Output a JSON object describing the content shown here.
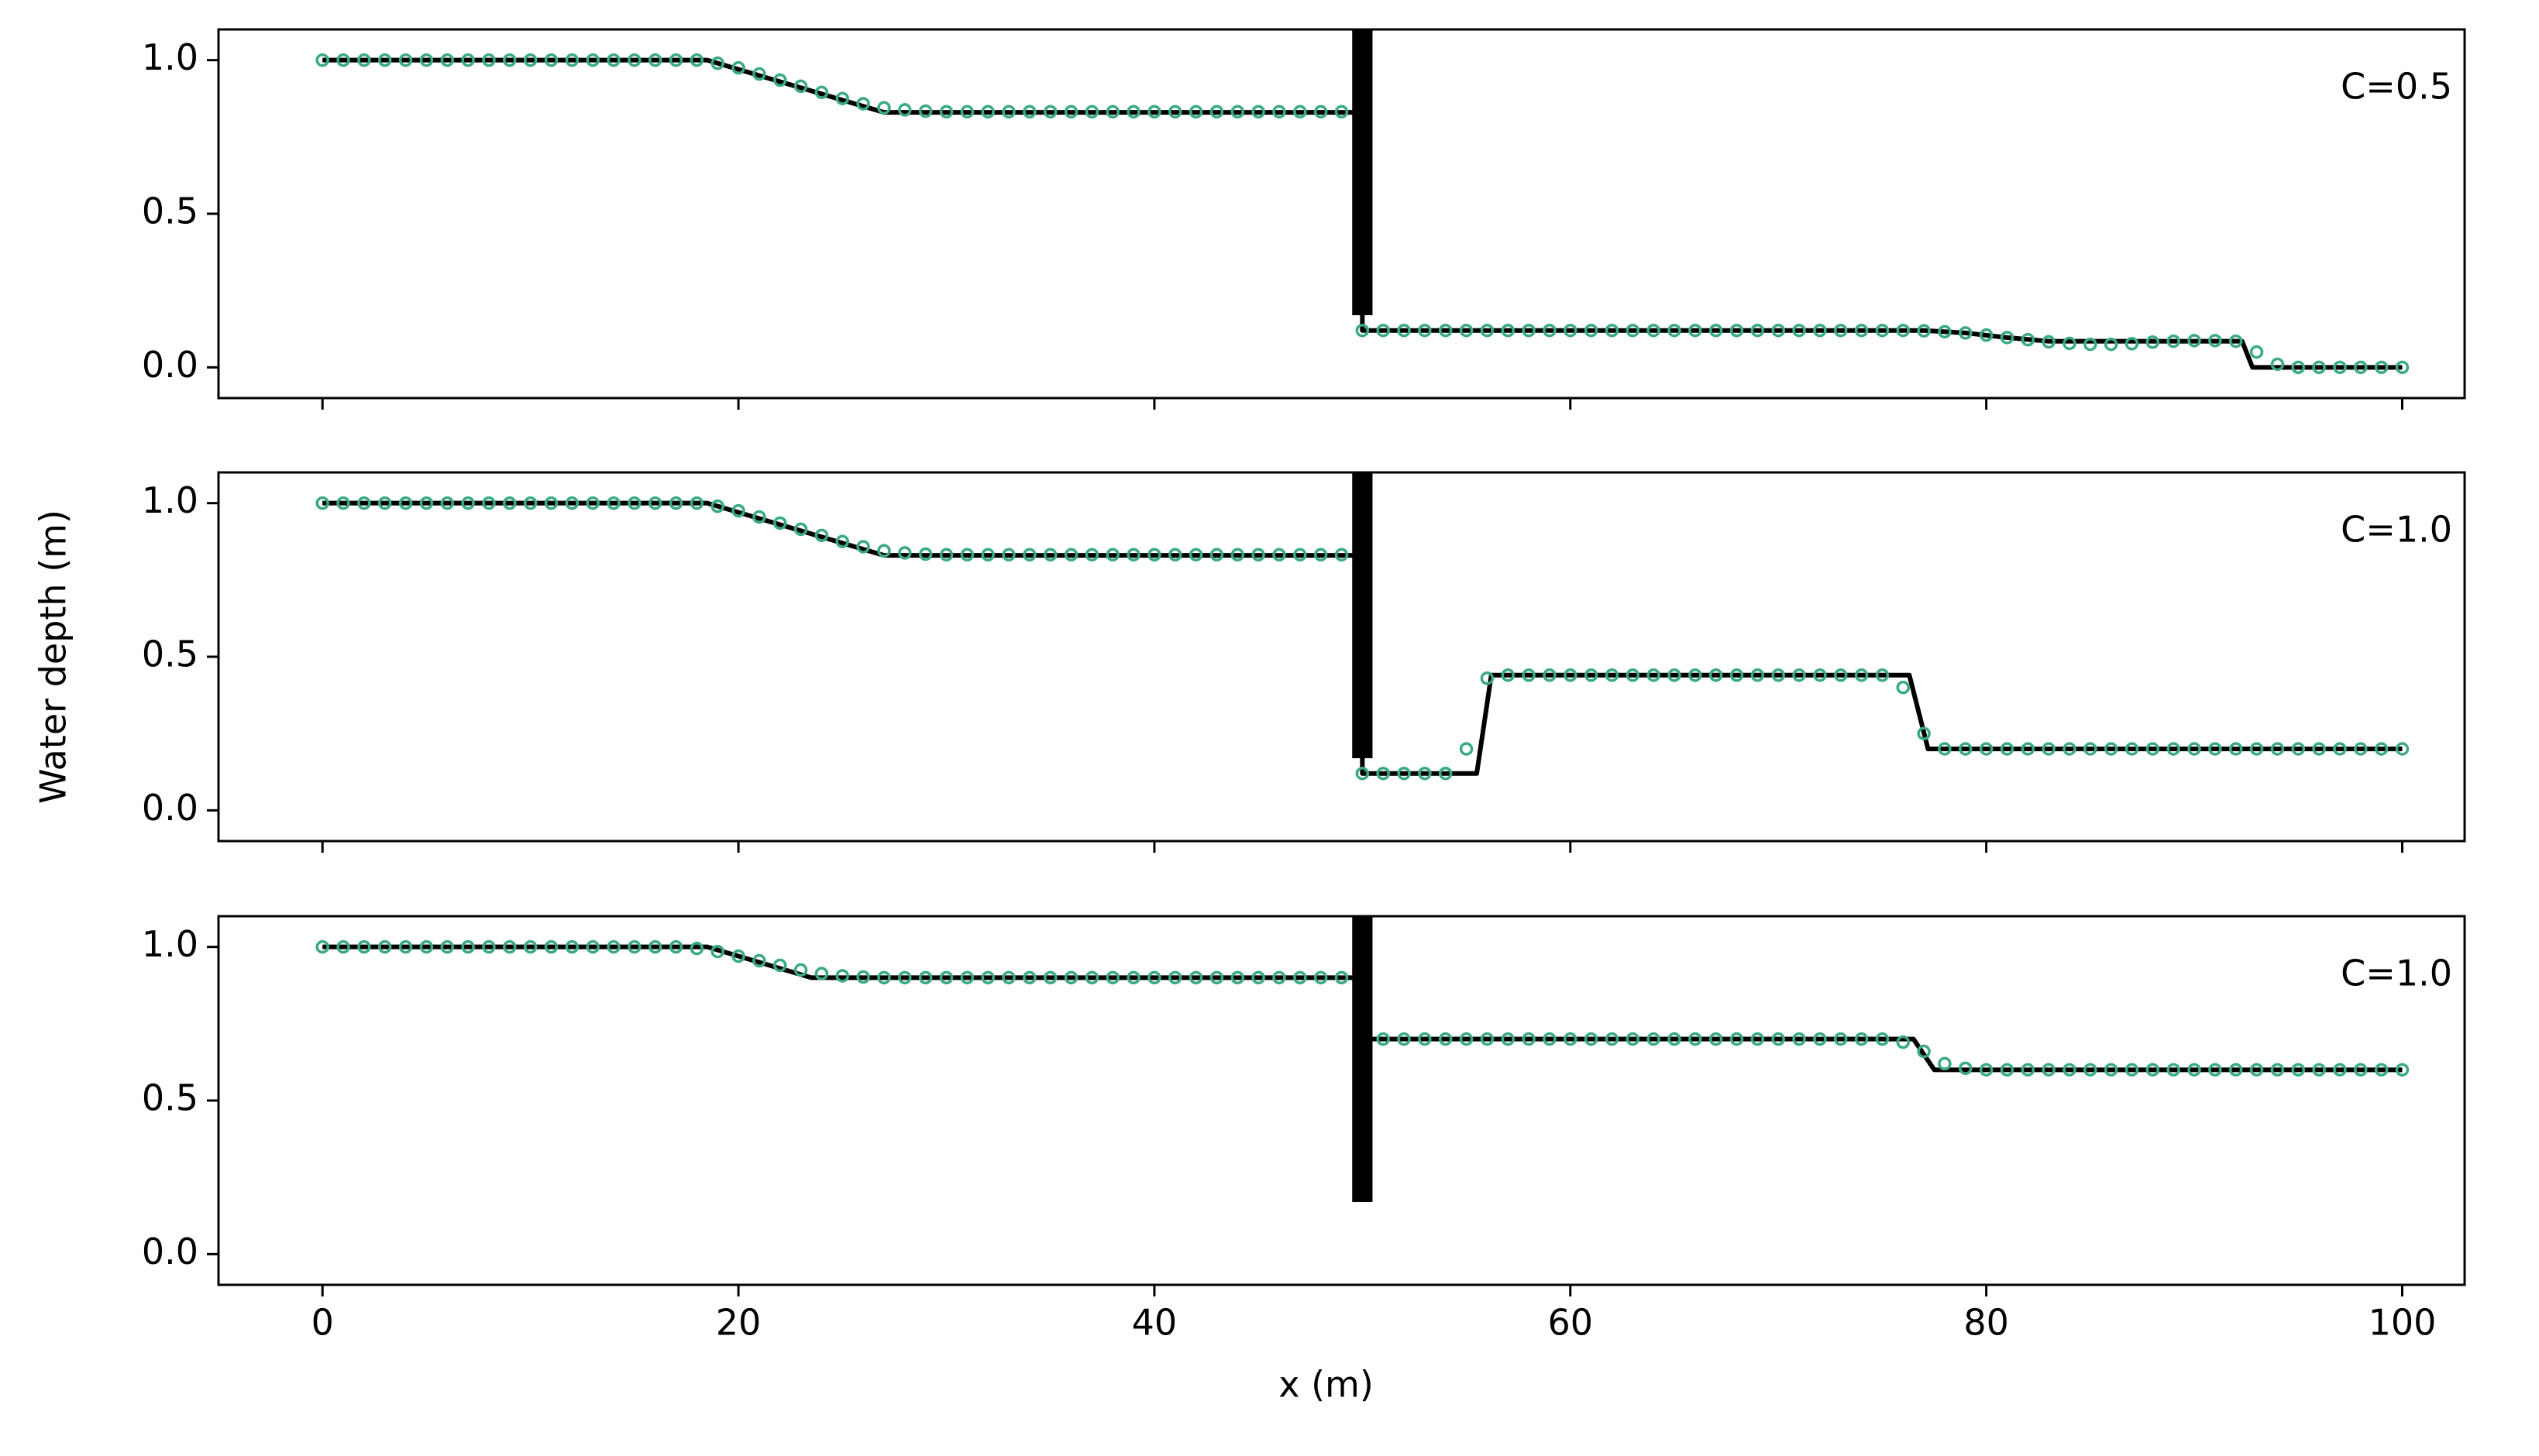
{
  "chart_data": [
    {
      "type": "line",
      "annotation": "C=0.5",
      "xlim": [
        -5,
        103
      ],
      "ylim": [
        -0.1,
        1.1
      ],
      "xticks": [
        0,
        20,
        40,
        60,
        80,
        100
      ],
      "xticklabels": false,
      "yticks": [
        {
          "value": 0,
          "label": "0.0"
        },
        0.5,
        {
          "value": 1,
          "label": "1.0"
        }
      ],
      "wall": {
        "x": 50,
        "bottom": 0.17
      },
      "series": [
        {
          "color": "#000000",
          "marker": "none",
          "x": [
            0,
            18.5,
            27,
            50,
            50,
            77,
            79,
            81,
            83,
            92.3,
            92.8,
            100
          ],
          "values": [
            1,
            1,
            0.83,
            0.83,
            0.12,
            0.12,
            0.112,
            0.097,
            0.085,
            0.085,
            0,
            0
          ]
        },
        {
          "color": "#3aaa85",
          "marker": "circle",
          "x": [
            0,
            1,
            2,
            3,
            4,
            5,
            6,
            7,
            8,
            9,
            10,
            11,
            12,
            13,
            14,
            15,
            16,
            17,
            18,
            19,
            20,
            21,
            22,
            23,
            24,
            25,
            26,
            27,
            28,
            29,
            30,
            31,
            32,
            33,
            34,
            35,
            36,
            37,
            38,
            39,
            40,
            41,
            42,
            43,
            44,
            45,
            46,
            47,
            48,
            49,
            50,
            51,
            52,
            53,
            54,
            55,
            56,
            57,
            58,
            59,
            60,
            61,
            62,
            63,
            64,
            65,
            66,
            67,
            68,
            69,
            70,
            71,
            72,
            73,
            74,
            75,
            76,
            77,
            78,
            79,
            80,
            81,
            82,
            83,
            84,
            85,
            86,
            87,
            88,
            89,
            90,
            91,
            92,
            93,
            94,
            95,
            96,
            97,
            98,
            99,
            100
          ],
          "values": [
            1,
            1,
            1,
            1,
            1,
            1,
            1,
            1,
            1,
            1,
            1,
            1,
            1,
            1,
            1,
            1,
            1,
            1,
            1,
            0.99,
            0.975,
            0.955,
            0.935,
            0.915,
            0.895,
            0.875,
            0.858,
            0.845,
            0.838,
            0.834,
            0.832,
            0.832,
            0.832,
            0.832,
            0.832,
            0.832,
            0.832,
            0.832,
            0.832,
            0.832,
            0.832,
            0.832,
            0.832,
            0.832,
            0.832,
            0.832,
            0.832,
            0.832,
            0.832,
            0.832,
            0.12,
            0.12,
            0.12,
            0.12,
            0.12,
            0.12,
            0.12,
            0.12,
            0.12,
            0.12,
            0.12,
            0.12,
            0.12,
            0.12,
            0.12,
            0.12,
            0.12,
            0.12,
            0.12,
            0.12,
            0.12,
            0.12,
            0.12,
            0.12,
            0.12,
            0.12,
            0.12,
            0.119,
            0.116,
            0.112,
            0.105,
            0.097,
            0.09,
            0.083,
            0.078,
            0.075,
            0.075,
            0.077,
            0.082,
            0.085,
            0.087,
            0.087,
            0.085,
            0.05,
            0.01,
            0,
            0,
            0,
            0,
            0,
            0
          ]
        }
      ]
    },
    {
      "type": "line",
      "annotation": "C=1.0",
      "ylabel": "Water depth (m)",
      "xlim": [
        -5,
        103
      ],
      "ylim": [
        -0.1,
        1.1
      ],
      "xticks": [
        0,
        20,
        40,
        60,
        80,
        100
      ],
      "xticklabels": false,
      "yticks": [
        {
          "value": 0,
          "label": "0.0"
        },
        0.5,
        {
          "value": 1,
          "label": "1.0"
        }
      ],
      "wall": {
        "x": 50,
        "bottom": 0.17
      },
      "series": [
        {
          "color": "#000000",
          "marker": "none",
          "x": [
            0,
            18.5,
            27,
            50,
            50,
            55.5,
            56.2,
            76.3,
            77.2,
            100
          ],
          "values": [
            1,
            1,
            0.83,
            0.83,
            0.12,
            0.12,
            0.44,
            0.44,
            0.2,
            0.2
          ]
        },
        {
          "color": "#3aaa85",
          "marker": "circle",
          "x": [
            0,
            1,
            2,
            3,
            4,
            5,
            6,
            7,
            8,
            9,
            10,
            11,
            12,
            13,
            14,
            15,
            16,
            17,
            18,
            19,
            20,
            21,
            22,
            23,
            24,
            25,
            26,
            27,
            28,
            29,
            30,
            31,
            32,
            33,
            34,
            35,
            36,
            37,
            38,
            39,
            40,
            41,
            42,
            43,
            44,
            45,
            46,
            47,
            48,
            49,
            50,
            51,
            52,
            53,
            54,
            55,
            56,
            57,
            58,
            59,
            60,
            61,
            62,
            63,
            64,
            65,
            66,
            67,
            68,
            69,
            70,
            71,
            72,
            73,
            74,
            75,
            76,
            77,
            78,
            79,
            80,
            81,
            82,
            83,
            84,
            85,
            86,
            87,
            88,
            89,
            90,
            91,
            92,
            93,
            94,
            95,
            96,
            97,
            98,
            99,
            100
          ],
          "values": [
            1,
            1,
            1,
            1,
            1,
            1,
            1,
            1,
            1,
            1,
            1,
            1,
            1,
            1,
            1,
            1,
            1,
            1,
            1,
            0.99,
            0.975,
            0.955,
            0.935,
            0.915,
            0.895,
            0.875,
            0.858,
            0.845,
            0.838,
            0.834,
            0.832,
            0.832,
            0.832,
            0.832,
            0.832,
            0.832,
            0.832,
            0.832,
            0.832,
            0.832,
            0.832,
            0.832,
            0.832,
            0.832,
            0.832,
            0.832,
            0.832,
            0.832,
            0.832,
            0.832,
            0.12,
            0.12,
            0.12,
            0.12,
            0.12,
            0.2,
            0.43,
            0.44,
            0.44,
            0.44,
            0.44,
            0.44,
            0.44,
            0.44,
            0.44,
            0.44,
            0.44,
            0.44,
            0.44,
            0.44,
            0.44,
            0.44,
            0.44,
            0.44,
            0.44,
            0.44,
            0.4,
            0.25,
            0.2,
            0.2,
            0.2,
            0.2,
            0.2,
            0.2,
            0.2,
            0.2,
            0.2,
            0.2,
            0.2,
            0.2,
            0.2,
            0.2,
            0.2,
            0.2,
            0.2,
            0.2,
            0.2,
            0.2,
            0.2,
            0.2,
            0.2
          ]
        }
      ]
    },
    {
      "type": "line",
      "annotation": "C=1.0",
      "xlabel": "x (m)",
      "xlim": [
        -5,
        103
      ],
      "ylim": [
        -0.1,
        1.1
      ],
      "xticks": [
        0,
        20,
        40,
        60,
        80,
        100
      ],
      "xticklabels": true,
      "yticks": [
        {
          "value": 0,
          "label": "0.0"
        },
        0.5,
        {
          "value": 1,
          "label": "1.0"
        }
      ],
      "wall": {
        "x": 50,
        "bottom": 0.17
      },
      "series": [
        {
          "color": "#000000",
          "marker": "none",
          "x": [
            0,
            18.5,
            23.5,
            50,
            50,
            76.5,
            77.5,
            100
          ],
          "values": [
            1,
            1,
            0.9,
            0.9,
            0.7,
            0.7,
            0.6,
            0.6
          ]
        },
        {
          "color": "#3aaa85",
          "marker": "circle",
          "x": [
            0,
            1,
            2,
            3,
            4,
            5,
            6,
            7,
            8,
            9,
            10,
            11,
            12,
            13,
            14,
            15,
            16,
            17,
            18,
            19,
            20,
            21,
            22,
            23,
            24,
            25,
            26,
            27,
            28,
            29,
            30,
            31,
            32,
            33,
            34,
            35,
            36,
            37,
            38,
            39,
            40,
            41,
            42,
            43,
            44,
            45,
            46,
            47,
            48,
            49,
            50,
            51,
            52,
            53,
            54,
            55,
            56,
            57,
            58,
            59,
            60,
            61,
            62,
            63,
            64,
            65,
            66,
            67,
            68,
            69,
            70,
            71,
            72,
            73,
            74,
            75,
            76,
            77,
            78,
            79,
            80,
            81,
            82,
            83,
            84,
            85,
            86,
            87,
            88,
            89,
            90,
            91,
            92,
            93,
            94,
            95,
            96,
            97,
            98,
            99,
            100
          ],
          "values": [
            1,
            1,
            1,
            1,
            1,
            1,
            1,
            1,
            1,
            1,
            1,
            1,
            1,
            1,
            1,
            1,
            1,
            1,
            0.995,
            0.985,
            0.97,
            0.955,
            0.94,
            0.925,
            0.913,
            0.906,
            0.902,
            0.9,
            0.9,
            0.9,
            0.9,
            0.9,
            0.9,
            0.9,
            0.9,
            0.9,
            0.9,
            0.9,
            0.9,
            0.9,
            0.9,
            0.9,
            0.9,
            0.9,
            0.9,
            0.9,
            0.9,
            0.9,
            0.9,
            0.9,
            0.7,
            0.7,
            0.7,
            0.7,
            0.7,
            0.7,
            0.7,
            0.7,
            0.7,
            0.7,
            0.7,
            0.7,
            0.7,
            0.7,
            0.7,
            0.7,
            0.7,
            0.7,
            0.7,
            0.7,
            0.7,
            0.7,
            0.7,
            0.7,
            0.7,
            0.7,
            0.69,
            0.66,
            0.62,
            0.605,
            0.6,
            0.6,
            0.6,
            0.6,
            0.6,
            0.6,
            0.6,
            0.6,
            0.6,
            0.6,
            0.6,
            0.6,
            0.6,
            0.6,
            0.6,
            0.6,
            0.6,
            0.6,
            0.6,
            0.6,
            0.6
          ]
        }
      ]
    }
  ]
}
